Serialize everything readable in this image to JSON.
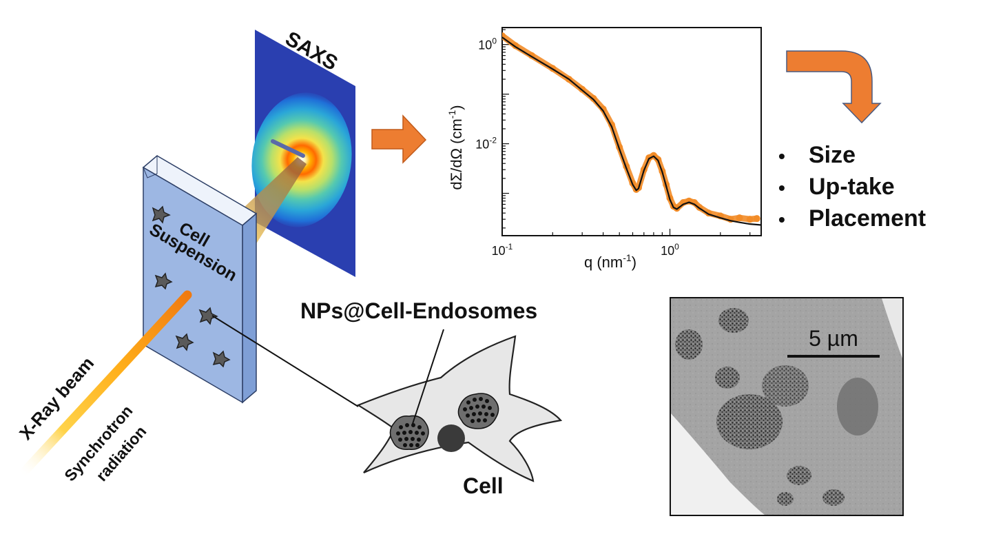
{
  "detector_label": "SAXS",
  "cuvette_label_line1": "Cell",
  "cuvette_label_line2": "Suspension",
  "beam_label": "X-Ray beam",
  "source_label_line1": "Synchrotron",
  "source_label_line2": "radiation",
  "nps_label": "NPs@Cell-Endosomes",
  "cell_label": "Cell",
  "results": [
    "Size",
    "Up-take",
    "Placement"
  ],
  "micrograph_scale_label": "5 µm",
  "colors": {
    "arrow": "#ED7D31",
    "cuvette": "#9DB7E3",
    "data": "#F28C28",
    "fit": "#111111"
  },
  "chart_data": {
    "type": "scatter",
    "x_scale": "log",
    "y_scale": "log",
    "xlabel_base": "q (nm",
    "xlabel_sup": "-1",
    "xlabel_end": ")",
    "ylabel_base": "dΣ/dΩ (cm",
    "ylabel_sup": "-1",
    "ylabel_end": ")",
    "xlim": [
      0.1,
      3.5
    ],
    "ylim": [
      0.00014,
      2.2
    ],
    "x_ticks": [
      {
        "base": "10",
        "exp": "-1",
        "value": 0.1
      },
      {
        "base": "10",
        "exp": "0",
        "value": 1.0
      }
    ],
    "y_ticks": [
      {
        "base": "10",
        "exp": "-2",
        "value": 0.01
      },
      {
        "base": "10",
        "exp": "0",
        "value": 1.0
      }
    ],
    "series": [
      {
        "style": "markers",
        "x": [
          0.1,
          0.12,
          0.15,
          0.2,
          0.25,
          0.3,
          0.35,
          0.4,
          0.45,
          0.5,
          0.55,
          0.6,
          0.63,
          0.65,
          0.7,
          0.75,
          0.8,
          0.85,
          0.9,
          0.95,
          1.0,
          1.05,
          1.1,
          1.2,
          1.3,
          1.4,
          1.5,
          1.7,
          2.0,
          2.3,
          2.6,
          3.0,
          3.3
        ],
        "y": [
          1.5,
          0.95,
          0.6,
          0.33,
          0.2,
          0.125,
          0.082,
          0.05,
          0.024,
          0.0085,
          0.0035,
          0.0016,
          0.0012,
          0.0013,
          0.003,
          0.0052,
          0.0058,
          0.0048,
          0.0028,
          0.0015,
          0.0008,
          0.00055,
          0.0005,
          0.00065,
          0.0007,
          0.00065,
          0.00052,
          0.0004,
          0.00035,
          0.0003,
          0.00032,
          0.0003,
          0.00031
        ]
      },
      {
        "style": "line",
        "x": [
          0.1,
          0.12,
          0.15,
          0.2,
          0.25,
          0.3,
          0.35,
          0.4,
          0.45,
          0.5,
          0.55,
          0.6,
          0.63,
          0.65,
          0.7,
          0.75,
          0.8,
          0.85,
          0.9,
          0.95,
          1.0,
          1.05,
          1.1,
          1.2,
          1.3,
          1.4,
          1.5,
          1.7,
          2.0,
          2.3,
          2.6,
          3.0,
          3.5
        ],
        "y": [
          1.4,
          0.9,
          0.57,
          0.32,
          0.2,
          0.12,
          0.078,
          0.046,
          0.022,
          0.0078,
          0.0032,
          0.0015,
          0.00115,
          0.00125,
          0.0029,
          0.005,
          0.0056,
          0.0046,
          0.0027,
          0.0014,
          0.00075,
          0.00052,
          0.00048,
          0.0006,
          0.00066,
          0.0006,
          0.0005,
          0.00038,
          0.00032,
          0.00028,
          0.00026,
          0.00024,
          0.00023
        ]
      }
    ]
  }
}
